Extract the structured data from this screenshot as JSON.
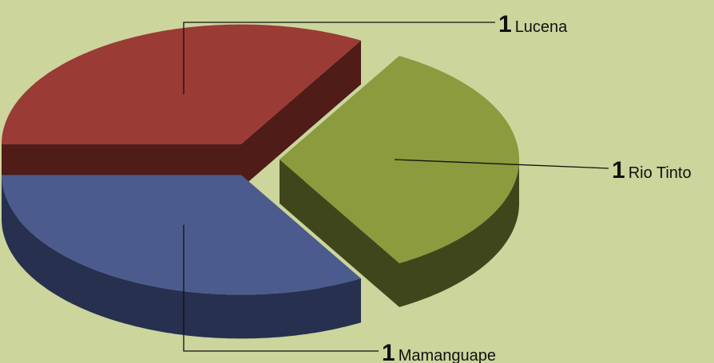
{
  "chart_data": {
    "type": "pie",
    "categories": [
      "Lucena",
      "Rio Tinto",
      "Mamanguape"
    ],
    "values": [
      1,
      1,
      1
    ],
    "colors": [
      "#9a3b35",
      "#8b9b3d",
      "#4b5b8d"
    ],
    "side_colors": [
      "#4f1c18",
      "#40461c",
      "#28304f"
    ]
  }
}
